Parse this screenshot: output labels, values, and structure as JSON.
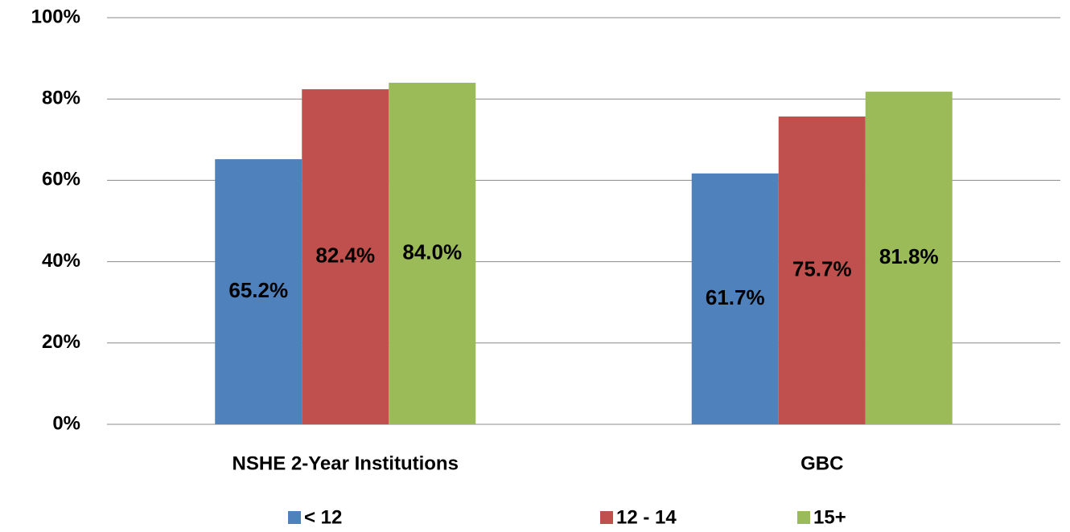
{
  "chart_data": {
    "type": "bar",
    "categories": [
      "NSHE 2-Year Institutions",
      "GBC"
    ],
    "series": [
      {
        "name": "< 12",
        "color": "#4f81bd",
        "values": [
          65.2,
          61.7
        ],
        "value_labels": [
          "65.2%",
          "61.7%"
        ]
      },
      {
        "name": "12 - 14",
        "color": "#c0504d",
        "values": [
          82.4,
          75.7
        ],
        "value_labels": [
          "82.4%",
          "75.7%"
        ]
      },
      {
        "name": "15+",
        "color": "#9bbb59",
        "values": [
          84.0,
          81.8
        ],
        "value_labels": [
          "84.0%",
          "81.8%"
        ]
      }
    ],
    "ylim": [
      0,
      100
    ],
    "yticks": [
      {
        "value": 0,
        "label": "0%"
      },
      {
        "value": 20,
        "label": "20%"
      },
      {
        "value": 40,
        "label": "40%"
      },
      {
        "value": 60,
        "label": "60%"
      },
      {
        "value": 80,
        "label": "80%"
      },
      {
        "value": 100,
        "label": "100%"
      }
    ],
    "grid": true,
    "legend": "bottom"
  }
}
